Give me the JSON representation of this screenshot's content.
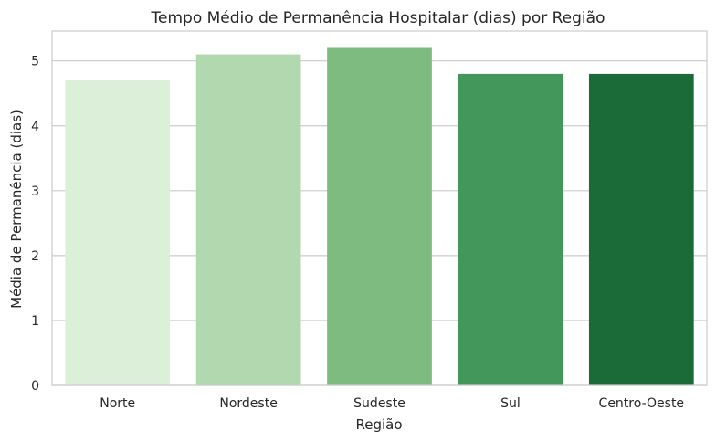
{
  "chart_data": {
    "type": "bar",
    "title": "Tempo Médio de Permanência Hospitalar (dias) por Região",
    "xlabel": "Região",
    "ylabel": "Média de Permanência (dias)",
    "categories": [
      "Norte",
      "Nordeste",
      "Sudeste",
      "Sul",
      "Centro-Oeste"
    ],
    "values": [
      4.7,
      5.1,
      5.2,
      4.8,
      4.8
    ],
    "colors": [
      "#dcefd9",
      "#b2d8b0",
      "#7dbb81",
      "#43975a",
      "#1a6b38"
    ],
    "yticks": [
      0,
      1,
      2,
      3,
      4,
      5
    ],
    "ylim": [
      0,
      5.46
    ],
    "grid": true,
    "legend": "none"
  }
}
